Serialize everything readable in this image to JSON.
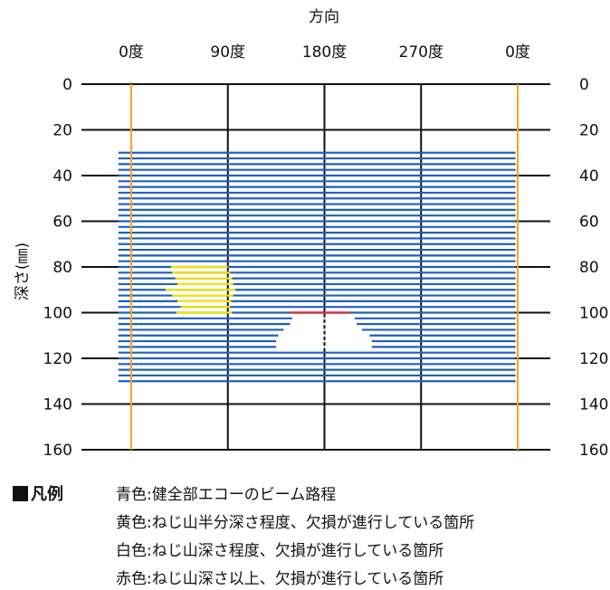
{
  "chart_data": {
    "type": "line",
    "title": "",
    "xlabel": "方向",
    "ylabel": "深さ(㎜)",
    "x_ticks": [
      0,
      90,
      180,
      270,
      360
    ],
    "x_tick_labels": [
      "0度",
      "90度",
      "180度",
      "270度",
      "0度"
    ],
    "xlim": [
      0,
      360
    ],
    "y_ticks": [
      0,
      20,
      40,
      60,
      80,
      100,
      120,
      140,
      160
    ],
    "y_tick_labels": [
      "0",
      "20",
      "40",
      "60",
      "80",
      "100",
      "120",
      "140",
      "160"
    ],
    "ylim": [
      0,
      160
    ],
    "y_inverted": true,
    "grid": true,
    "boundary_color": "#f5a623",
    "grid_color": "#111111",
    "series": [
      {
        "color": "#1f5fbf",
        "segments": [
          {
            "depth": 30,
            "from": -12,
            "to": 358
          },
          {
            "depth": 32.5,
            "from": -12,
            "to": 358
          },
          {
            "depth": 35,
            "from": -12,
            "to": 358
          },
          {
            "depth": 37.5,
            "from": -12,
            "to": 358
          },
          {
            "depth": 40,
            "from": -12,
            "to": 358
          },
          {
            "depth": 42.5,
            "from": -12,
            "to": 358
          },
          {
            "depth": 45,
            "from": -12,
            "to": 358
          },
          {
            "depth": 47.5,
            "from": -12,
            "to": 358
          },
          {
            "depth": 50,
            "from": -12,
            "to": 358
          },
          {
            "depth": 52.5,
            "from": -12,
            "to": 358
          },
          {
            "depth": 55,
            "from": -12,
            "to": 358
          },
          {
            "depth": 57.5,
            "from": -12,
            "to": 358
          },
          {
            "depth": 60,
            "from": -12,
            "to": 358
          },
          {
            "depth": 62.5,
            "from": -12,
            "to": 358
          },
          {
            "depth": 65,
            "from": -12,
            "to": 358
          },
          {
            "depth": 67.5,
            "from": -12,
            "to": 358
          },
          {
            "depth": 70,
            "from": -12,
            "to": 358
          },
          {
            "depth": 72.5,
            "from": -12,
            "to": 358
          },
          {
            "depth": 75,
            "from": -12,
            "to": 358
          },
          {
            "depth": 77.5,
            "from": -12,
            "to": 358
          },
          {
            "depth": 80,
            "from": -12,
            "to": 358
          },
          {
            "depth": 82.5,
            "from": -12,
            "to": 358
          },
          {
            "depth": 85,
            "from": -12,
            "to": 358
          },
          {
            "depth": 87.5,
            "from": -12,
            "to": 358
          },
          {
            "depth": 90,
            "from": -12,
            "to": 358
          },
          {
            "depth": 92.5,
            "from": -12,
            "to": 358
          },
          {
            "depth": 95,
            "from": -12,
            "to": 358
          },
          {
            "depth": 97.5,
            "from": -12,
            "to": 358
          },
          {
            "depth": 100,
            "from": -12,
            "to": 358
          },
          {
            "depth": 102.5,
            "from": -12,
            "to": 150
          },
          {
            "depth": 102.5,
            "from": 208,
            "to": 358
          },
          {
            "depth": 105,
            "from": -12,
            "to": 148
          },
          {
            "depth": 105,
            "from": 210,
            "to": 358
          },
          {
            "depth": 107.5,
            "from": -12,
            "to": 142
          },
          {
            "depth": 107.5,
            "from": 215,
            "to": 358
          },
          {
            "depth": 110,
            "from": -12,
            "to": 137
          },
          {
            "depth": 110,
            "from": 222,
            "to": 358
          },
          {
            "depth": 112.5,
            "from": -12,
            "to": 135
          },
          {
            "depth": 112.5,
            "from": 224,
            "to": 358
          },
          {
            "depth": 115,
            "from": -12,
            "to": 135
          },
          {
            "depth": 115,
            "from": 224,
            "to": 358
          },
          {
            "depth": 117.5,
            "from": -12,
            "to": 358
          },
          {
            "depth": 120,
            "from": -12,
            "to": 358
          },
          {
            "depth": 122.5,
            "from": -12,
            "to": 358
          },
          {
            "depth": 125,
            "from": -12,
            "to": 358
          },
          {
            "depth": 127.5,
            "from": -12,
            "to": 358
          },
          {
            "depth": 130,
            "from": -12,
            "to": 358
          }
        ]
      },
      {
        "color": "#f3e600",
        "segments": [
          {
            "depth": 80,
            "from": 37,
            "to": 90
          },
          {
            "depth": 82.5,
            "from": 38,
            "to": 92
          },
          {
            "depth": 85,
            "from": 41,
            "to": 94
          },
          {
            "depth": 87.5,
            "from": 43,
            "to": 95
          },
          {
            "depth": 90,
            "from": 32,
            "to": 97
          },
          {
            "depth": 92.5,
            "from": 38,
            "to": 95
          },
          {
            "depth": 95,
            "from": 43,
            "to": 93
          },
          {
            "depth": 97.5,
            "from": 46,
            "to": 92
          },
          {
            "depth": 100,
            "from": 42,
            "to": 94
          }
        ]
      },
      {
        "color": "#ffffff",
        "segments": [
          {
            "depth": 102.5,
            "from": 150,
            "to": 208
          },
          {
            "depth": 105,
            "from": 148,
            "to": 210
          },
          {
            "depth": 107.5,
            "from": 142,
            "to": 215
          },
          {
            "depth": 110,
            "from": 137,
            "to": 222
          },
          {
            "depth": 112.5,
            "from": 135,
            "to": 224
          },
          {
            "depth": 115,
            "from": 135,
            "to": 224
          }
        ]
      },
      {
        "color": "#e8262b",
        "segments": [
          {
            "depth": 100,
            "from": 148,
            "to": 203
          }
        ]
      }
    ]
  },
  "legend": {
    "title": "凡例",
    "items": [
      "青色:健全部エコーのビーム路程",
      "黄色:ねじ山半分深さ程度、欠損が進行している箇所",
      "白色:ねじ山深さ程度、欠損が進行している箇所",
      "赤色:ねじ山深さ以上、欠損が進行している箇所"
    ]
  }
}
